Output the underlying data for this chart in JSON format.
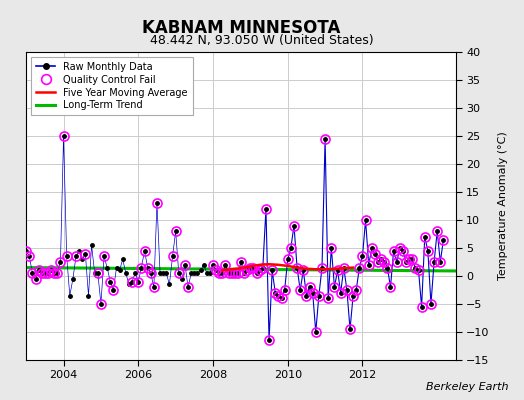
{
  "title": "KABNAM MINNESOTA",
  "subtitle": "48.442 N, 93.050 W (United States)",
  "ylabel": "Temperature Anomaly (°C)",
  "credit": "Berkeley Earth",
  "ylim": [
    -15,
    40
  ],
  "yticks": [
    -15,
    -10,
    -5,
    0,
    5,
    10,
    15,
    20,
    25,
    30,
    35,
    40
  ],
  "xlim_start": 2003.0,
  "xlim_end": 2014.5,
  "xticks": [
    2004,
    2006,
    2008,
    2010,
    2012
  ],
  "fig_bg": "#e8e8e8",
  "plot_bg": "#ffffff",
  "raw_color": "#0000cc",
  "raw_marker_color": "#000000",
  "qc_fail_color": "#ff00ff",
  "moving_avg_color": "#ff0000",
  "trend_color": "#00bb00",
  "grid_color": "#cccccc",
  "raw_x": [
    2003.0,
    2003.083,
    2003.167,
    2003.25,
    2003.333,
    2003.417,
    2003.5,
    2003.583,
    2003.667,
    2003.75,
    2003.833,
    2003.917,
    2004.0,
    2004.083,
    2004.167,
    2004.25,
    2004.333,
    2004.417,
    2004.5,
    2004.583,
    2004.667,
    2004.75,
    2004.833,
    2004.917,
    2005.0,
    2005.083,
    2005.167,
    2005.25,
    2005.333,
    2005.417,
    2005.5,
    2005.583,
    2005.667,
    2005.75,
    2005.833,
    2005.917,
    2006.0,
    2006.083,
    2006.167,
    2006.25,
    2006.333,
    2006.417,
    2006.5,
    2006.583,
    2006.667,
    2006.75,
    2006.833,
    2006.917,
    2007.0,
    2007.083,
    2007.167,
    2007.25,
    2007.333,
    2007.417,
    2007.5,
    2007.583,
    2007.667,
    2007.75,
    2007.833,
    2007.917,
    2008.0,
    2008.083,
    2008.167,
    2008.25,
    2008.333,
    2008.417,
    2008.5,
    2008.583,
    2008.667,
    2008.75,
    2008.833,
    2008.917,
    2009.0,
    2009.083,
    2009.167,
    2009.25,
    2009.333,
    2009.417,
    2009.5,
    2009.583,
    2009.667,
    2009.75,
    2009.833,
    2009.917,
    2010.0,
    2010.083,
    2010.167,
    2010.25,
    2010.333,
    2010.417,
    2010.5,
    2010.583,
    2010.667,
    2010.75,
    2010.833,
    2010.917,
    2011.0,
    2011.083,
    2011.167,
    2011.25,
    2011.333,
    2011.417,
    2011.5,
    2011.583,
    2011.667,
    2011.75,
    2011.833,
    2011.917,
    2012.0,
    2012.083,
    2012.167,
    2012.25,
    2012.333,
    2012.417,
    2012.5,
    2012.583,
    2012.667,
    2012.75,
    2012.833,
    2012.917,
    2013.0,
    2013.083,
    2013.167,
    2013.25,
    2013.333,
    2013.417,
    2013.5,
    2013.583,
    2013.667,
    2013.75,
    2013.833,
    2013.917,
    2014.0,
    2014.083,
    2014.167
  ],
  "raw_y": [
    4.5,
    3.5,
    0.5,
    -0.5,
    1.0,
    0.5,
    0.5,
    0.5,
    1.0,
    0.5,
    0.5,
    2.5,
    25.0,
    3.5,
    -3.5,
    -0.5,
    3.5,
    4.5,
    3.0,
    4.0,
    -3.5,
    5.5,
    0.5,
    0.5,
    -5.0,
    3.5,
    1.5,
    -1.0,
    -2.5,
    1.5,
    1.0,
    3.0,
    0.5,
    -1.5,
    -1.0,
    0.5,
    -1.0,
    1.5,
    4.5,
    1.5,
    0.5,
    -2.0,
    13.0,
    0.5,
    0.5,
    0.5,
    -1.5,
    3.5,
    8.0,
    0.5,
    -0.5,
    2.0,
    -2.0,
    0.5,
    0.5,
    0.5,
    1.0,
    2.0,
    0.5,
    0.5,
    2.0,
    1.0,
    0.5,
    0.5,
    2.0,
    0.5,
    0.5,
    0.5,
    0.5,
    2.5,
    0.5,
    1.0,
    1.5,
    1.5,
    0.5,
    1.0,
    1.5,
    12.0,
    -11.5,
    1.0,
    -3.0,
    -3.5,
    -4.0,
    -2.5,
    3.0,
    5.0,
    9.0,
    1.5,
    -2.5,
    1.0,
    -3.5,
    -2.0,
    -3.0,
    -10.0,
    -3.5,
    1.5,
    24.5,
    -4.0,
    5.0,
    -2.0,
    1.0,
    -3.0,
    1.5,
    -2.5,
    -9.5,
    -3.5,
    -2.5,
    1.5,
    3.5,
    10.0,
    2.0,
    5.0,
    4.0,
    2.5,
    3.0,
    2.5,
    1.5,
    -2.0,
    4.5,
    2.5,
    5.0,
    4.5,
    2.5,
    3.0,
    3.0,
    1.5,
    1.0,
    -5.5,
    7.0,
    4.5,
    -5.0,
    2.5,
    8.0,
    2.5,
    6.5
  ],
  "qc_fail_x": [
    2003.0,
    2003.083,
    2003.167,
    2003.25,
    2003.333,
    2003.417,
    2003.5,
    2003.583,
    2003.667,
    2003.75,
    2003.833,
    2003.917,
    2004.0,
    2004.083,
    2004.333,
    2004.583,
    2004.917,
    2005.0,
    2005.083,
    2005.25,
    2005.333,
    2005.833,
    2006.0,
    2006.083,
    2006.167,
    2006.25,
    2006.333,
    2006.417,
    2006.5,
    2006.917,
    2007.0,
    2007.083,
    2007.25,
    2007.333,
    2008.0,
    2008.083,
    2008.167,
    2008.25,
    2008.333,
    2008.417,
    2008.5,
    2008.583,
    2008.667,
    2008.75,
    2008.833,
    2008.917,
    2009.0,
    2009.083,
    2009.167,
    2009.25,
    2009.333,
    2009.417,
    2009.5,
    2009.583,
    2009.667,
    2009.75,
    2009.833,
    2009.917,
    2010.0,
    2010.083,
    2010.167,
    2010.25,
    2010.333,
    2010.417,
    2010.5,
    2010.583,
    2010.667,
    2010.75,
    2010.833,
    2010.917,
    2011.0,
    2011.083,
    2011.167,
    2011.25,
    2011.333,
    2011.417,
    2011.5,
    2011.583,
    2011.667,
    2011.75,
    2011.833,
    2011.917,
    2012.0,
    2012.083,
    2012.167,
    2012.25,
    2012.333,
    2012.417,
    2012.5,
    2012.583,
    2012.667,
    2012.75,
    2012.833,
    2012.917,
    2013.0,
    2013.083,
    2013.167,
    2013.25,
    2013.333,
    2013.417,
    2013.5,
    2013.583,
    2013.667,
    2013.75,
    2013.833,
    2013.917,
    2014.0,
    2014.083,
    2014.167
  ],
  "qc_fail_y": [
    4.5,
    3.5,
    0.5,
    -0.5,
    1.0,
    0.5,
    0.5,
    0.5,
    1.0,
    0.5,
    0.5,
    2.5,
    25.0,
    3.5,
    3.5,
    4.0,
    0.5,
    -5.0,
    3.5,
    -1.0,
    -2.5,
    -1.0,
    -1.0,
    1.5,
    4.5,
    1.5,
    0.5,
    -2.0,
    13.0,
    3.5,
    8.0,
    0.5,
    2.0,
    -2.0,
    2.0,
    1.0,
    0.5,
    0.5,
    2.0,
    0.5,
    0.5,
    0.5,
    0.5,
    2.5,
    0.5,
    1.0,
    1.5,
    1.5,
    0.5,
    1.0,
    1.5,
    12.0,
    -11.5,
    1.0,
    -3.0,
    -3.5,
    -4.0,
    -2.5,
    3.0,
    5.0,
    9.0,
    1.5,
    -2.5,
    1.0,
    -3.5,
    -2.0,
    -3.0,
    -10.0,
    -3.5,
    1.5,
    24.5,
    -4.0,
    5.0,
    -2.0,
    1.0,
    -3.0,
    1.5,
    -2.5,
    -9.5,
    -3.5,
    -2.5,
    1.5,
    3.5,
    10.0,
    2.0,
    5.0,
    4.0,
    2.5,
    3.0,
    2.5,
    1.5,
    -2.0,
    4.5,
    2.5,
    5.0,
    4.5,
    2.5,
    3.0,
    3.0,
    1.5,
    1.0,
    -5.5,
    7.0,
    4.5,
    -5.0,
    2.5,
    8.0,
    2.5,
    6.5
  ],
  "moving_avg_x": [
    2008.25,
    2008.5,
    2008.75,
    2009.0,
    2009.25,
    2009.5,
    2009.75,
    2010.0,
    2010.25,
    2010.5,
    2010.75,
    2011.0,
    2011.25,
    2011.5,
    2011.75
  ],
  "moving_avg_y": [
    1.0,
    1.2,
    1.4,
    1.7,
    2.0,
    2.1,
    2.0,
    1.8,
    1.5,
    1.3,
    1.2,
    1.2,
    1.3,
    1.4,
    1.5
  ],
  "trend_x": [
    2003.0,
    2014.5
  ],
  "trend_y": [
    1.5,
    0.9
  ]
}
